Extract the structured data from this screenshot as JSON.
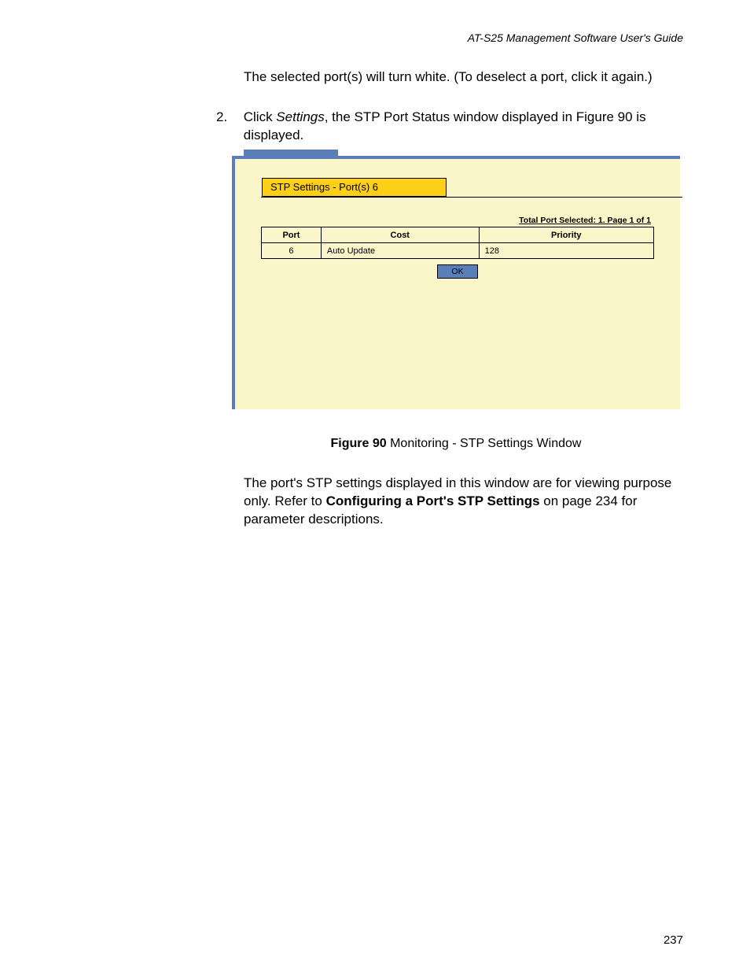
{
  "header": {
    "running_title": "AT-S25 Management Software User's Guide"
  },
  "para1": "The selected port(s) will turn white. (To deselect a port, click it again.)",
  "step2": {
    "num": "2.",
    "pre": "Click ",
    "settings": "Settings",
    "post": ", the STP Port Status window displayed in Figure 90 is displayed."
  },
  "window": {
    "title": "STP Settings - Port(s) 6",
    "status": "Total Port Selected: 1. Page 1 of 1",
    "columns": {
      "port": "Port",
      "cost": "Cost",
      "priority": "Priority"
    },
    "rows": [
      {
        "port": "6",
        "cost": "Auto Update",
        "priority": "128"
      }
    ],
    "ok": "OK",
    "colors": {
      "cream_bg": "#faf6c9",
      "tab_blue": "#5a7fb8",
      "title_gold": "#fdd017",
      "ok_bg": "#5a7fb8"
    }
  },
  "caption": {
    "label": "Figure 90",
    "text": "  Monitoring - STP Settings Window"
  },
  "para2": {
    "pre": "The port's STP settings displayed in this window are for viewing purpose only. Refer to ",
    "bold": "Configuring a Port's STP Settings",
    "post": " on page 234 for parameter descriptions."
  },
  "page_number": "237"
}
